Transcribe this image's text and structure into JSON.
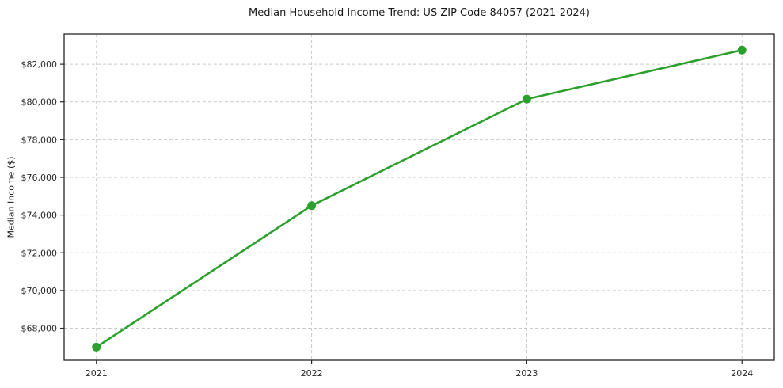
{
  "chart_data": {
    "type": "line",
    "title": "Median Household Income Trend: US ZIP Code 84057 (2021-2024)",
    "xlabel": "",
    "ylabel": "Median Income ($)",
    "x": [
      2021,
      2022,
      2023,
      2024
    ],
    "x_tick_labels": [
      "2021",
      "2022",
      "2023",
      "2024"
    ],
    "series": [
      {
        "name": "Median Household Income",
        "values": [
          67000,
          74500,
          80150,
          82750
        ],
        "color": "#2ca02c",
        "marker": "circle"
      }
    ],
    "y_ticks": [
      68000,
      70000,
      72000,
      74000,
      76000,
      78000,
      80000,
      82000
    ],
    "y_tick_labels": [
      "$68,000",
      "$70,000",
      "$72,000",
      "$74,000",
      "$76,000",
      "$78,000",
      "$80,000",
      "$82,000"
    ],
    "ylim": [
      66300,
      83600
    ],
    "xlim": [
      2020.85,
      2024.15
    ],
    "grid": true,
    "grid_style": "dashed",
    "legend": "none",
    "colors": {
      "line": "#2ca02c",
      "grid": "#c9c9c9",
      "axis": "#262626",
      "text": "#262626",
      "background": "#ffffff"
    }
  }
}
